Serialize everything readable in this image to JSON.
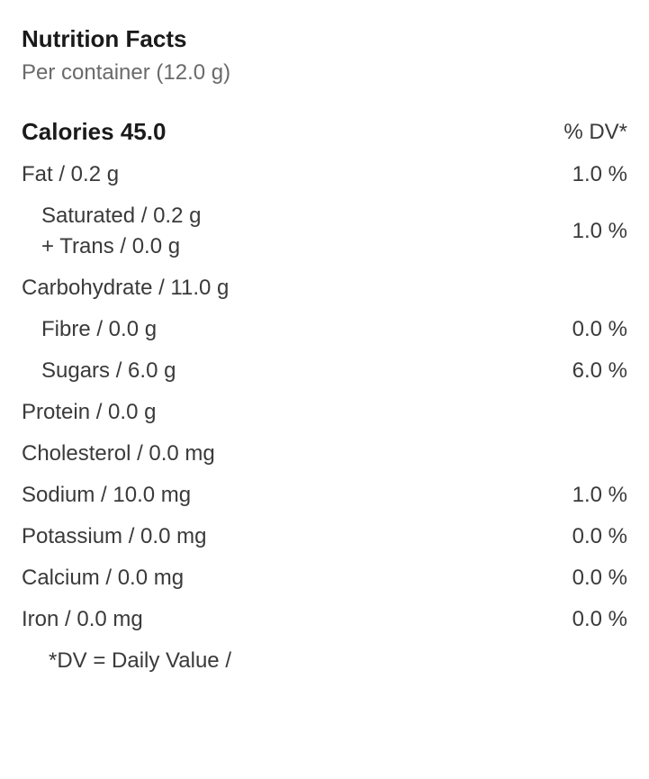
{
  "title": "Nutrition Facts",
  "serving": "Per container (12.0 g)",
  "calories_line": "Calories 45.0",
  "dv_header": "% DV*",
  "rows": {
    "fat": {
      "label": "Fat / 0.2 g",
      "dv": "1.0 %"
    },
    "saturated": {
      "label": "Saturated / 0.2 g"
    },
    "trans": {
      "label": "+ Trans / 0.0 g"
    },
    "sat_trans_dv": "1.0 %",
    "carbohydrate": {
      "label": "Carbohydrate / 11.0 g",
      "dv": ""
    },
    "fibre": {
      "label": "Fibre / 0.0 g",
      "dv": "0.0 %"
    },
    "sugars": {
      "label": "Sugars / 6.0 g",
      "dv": "6.0 %"
    },
    "protein": {
      "label": "Protein / 0.0 g",
      "dv": ""
    },
    "cholesterol": {
      "label": "Cholesterol / 0.0 mg",
      "dv": ""
    },
    "sodium": {
      "label": "Sodium / 10.0 mg",
      "dv": "1.0 %"
    },
    "potassium": {
      "label": "Potassium / 0.0 mg",
      "dv": "0.0 %"
    },
    "calcium": {
      "label": "Calcium / 0.0 mg",
      "dv": "0.0 %"
    },
    "iron": {
      "label": "Iron / 0.0 mg",
      "dv": "0.0 %"
    }
  },
  "footnote": "*DV = Daily Value /"
}
